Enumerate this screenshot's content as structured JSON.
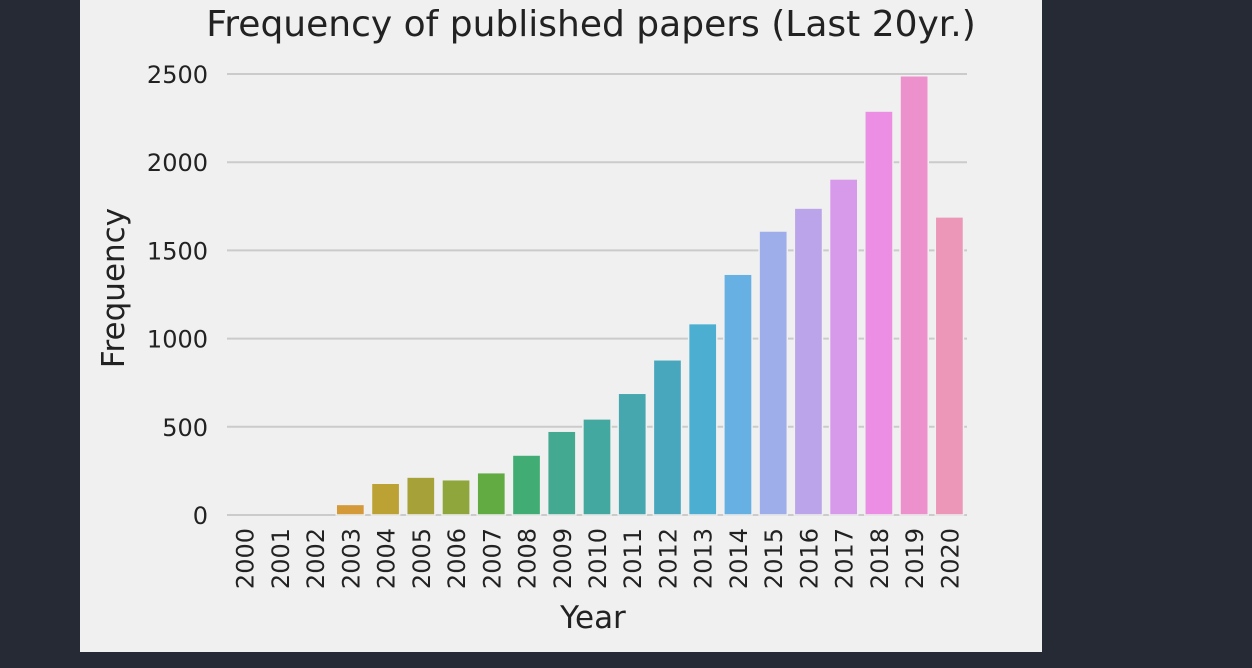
{
  "colors": {
    "page_background": "#252a35",
    "figure_background": "#f0f0f0",
    "grid": "#cbcbcb"
  },
  "chart_data": {
    "type": "bar",
    "title": "Frequency of published papers (Last 20yr.)",
    "xlabel": "Year",
    "ylabel": "Frequency",
    "categories": [
      "2000",
      "2001",
      "2002",
      "2003",
      "2004",
      "2005",
      "2006",
      "2007",
      "2008",
      "2009",
      "2010",
      "2011",
      "2012",
      "2013",
      "2014",
      "2015",
      "2016",
      "2017",
      "2018",
      "2019",
      "2020"
    ],
    "values": [
      0,
      0,
      0,
      60,
      180,
      215,
      200,
      240,
      340,
      475,
      545,
      690,
      880,
      1085,
      1365,
      1610,
      1740,
      1905,
      2290,
      2490,
      1690
    ],
    "bar_colors": [
      "#f0766b",
      "#e88253",
      "#de8c3b",
      "#d49939",
      "#bca235",
      "#a7a13a",
      "#8fa63c",
      "#62ab43",
      "#41ad74",
      "#44a991",
      "#43a9a0",
      "#46a7af",
      "#48a7bd",
      "#4caed0",
      "#67b0e4",
      "#9eaeea",
      "#bca4ea",
      "#d799ea",
      "#ec8ee3",
      "#ec91cc",
      "#ec96b8"
    ],
    "ylim": [
      0,
      2500
    ],
    "yticks": [
      "0",
      "500",
      "1000",
      "1500",
      "2000",
      "2500"
    ],
    "grid": true,
    "legend": "none"
  }
}
